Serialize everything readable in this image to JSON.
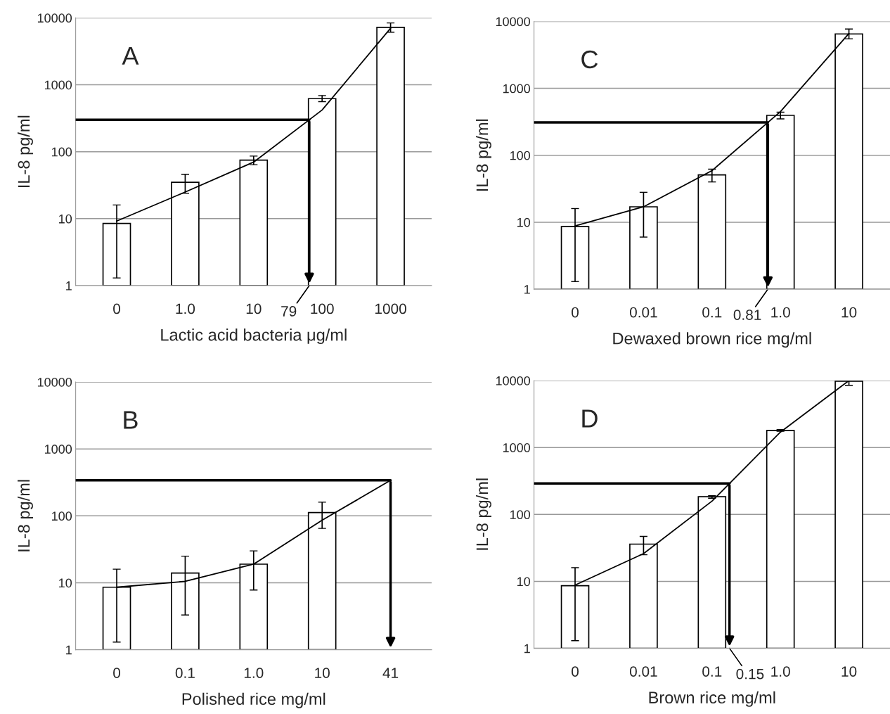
{
  "chart_data": [
    {
      "type": "bar",
      "title": "A",
      "xlabel": "Lactic acid bacteria μg/ml",
      "ylabel": "IL-8 pg/ml",
      "categories": [
        "0",
        "1.0",
        "10",
        "100",
        "1000"
      ],
      "log": true,
      "ylim": [
        1,
        10000
      ],
      "yticks": [
        1,
        10,
        100,
        1000,
        10000
      ],
      "grid": "y",
      "series": [
        {
          "color": "#ffffff",
          "values": [
            8.5,
            35,
            75,
            620,
            7200
          ],
          "errors": [
            [
              1.3,
              16
            ],
            [
              24,
              46
            ],
            [
              64,
              86
            ],
            [
              560,
              690
            ],
            [
              6100,
              8400
            ]
          ]
        },
        {
          "type": "line",
          "color": "#000000",
          "values": [
            9.2,
            25,
            70,
            420,
            7000
          ]
        }
      ],
      "ref_lines": [
        {
          "axis": "y",
          "value": 300
        }
      ],
      "annotations": [
        "79"
      ]
    },
    {
      "type": "bar",
      "title": "C",
      "xlabel": "Dewaxed brown rice mg/ml",
      "ylabel": "IL-8 pg/ml",
      "categories": [
        "0",
        "0.01",
        "0.1",
        "1.0",
        "10"
      ],
      "log": true,
      "ylim": [
        1,
        10000
      ],
      "yticks": [
        1,
        10,
        100,
        1000,
        10000
      ],
      "grid": "y",
      "series": [
        {
          "color": "#ffffff",
          "values": [
            8.6,
            17,
            51,
            395,
            6500
          ],
          "errors": [
            [
              1.3,
              16
            ],
            [
              6,
              28
            ],
            [
              40,
              62
            ],
            [
              350,
              440
            ],
            [
              5500,
              7700
            ]
          ]
        },
        {
          "type": "line",
          "color": "#000000",
          "values": [
            8.8,
            17,
            59,
            450,
            6600
          ]
        }
      ],
      "ref_lines": [
        {
          "axis": "y",
          "value": 310
        }
      ],
      "annotations": [
        "0.81"
      ]
    },
    {
      "type": "bar",
      "title": "B",
      "xlabel": "Polished rice mg/ml",
      "ylabel": "IL-8 pg/ml",
      "categories": [
        "0",
        "0.1",
        "1.0",
        "10",
        "41"
      ],
      "log": true,
      "ylim": [
        1,
        10000
      ],
      "yticks": [
        1,
        10,
        100,
        1000,
        10000
      ],
      "grid": "y",
      "series": [
        {
          "color": "#ffffff",
          "values": [
            8.6,
            14,
            19,
            112,
            null
          ],
          "errors": [
            [
              1.3,
              16
            ],
            [
              3.3,
              25
            ],
            [
              7.8,
              30
            ],
            [
              65,
              160
            ],
            null
          ]
        },
        {
          "type": "line",
          "color": "#000000",
          "values": [
            8.6,
            10.5,
            19,
            86,
            340
          ]
        }
      ],
      "ref_lines": [
        {
          "axis": "y",
          "value": 340
        }
      ]
    },
    {
      "type": "bar",
      "title": "D",
      "xlabel": "Brown rice mg/ml",
      "ylabel": "IL-8 pg/ml",
      "categories": [
        "0",
        "0.01",
        "0.1",
        "1.0",
        "10"
      ],
      "log": true,
      "ylim": [
        1,
        10000
      ],
      "yticks": [
        1,
        10,
        100,
        1000,
        10000
      ],
      "grid": "y",
      "series": [
        {
          "color": "#ffffff",
          "values": [
            8.6,
            36,
            184,
            1800,
            9800
          ],
          "errors": [
            [
              1.3,
              16
            ],
            [
              25,
              47
            ],
            [
              175,
              190
            ],
            [
              1750,
              1850
            ],
            [
              8500,
              10000
            ]
          ]
        },
        {
          "type": "line",
          "color": "#000000",
          "values": [
            8.8,
            26,
            158,
            1700,
            10000
          ]
        }
      ],
      "ref_lines": [
        {
          "axis": "y",
          "value": 290
        }
      ],
      "annotations": [
        "0.15"
      ]
    }
  ]
}
